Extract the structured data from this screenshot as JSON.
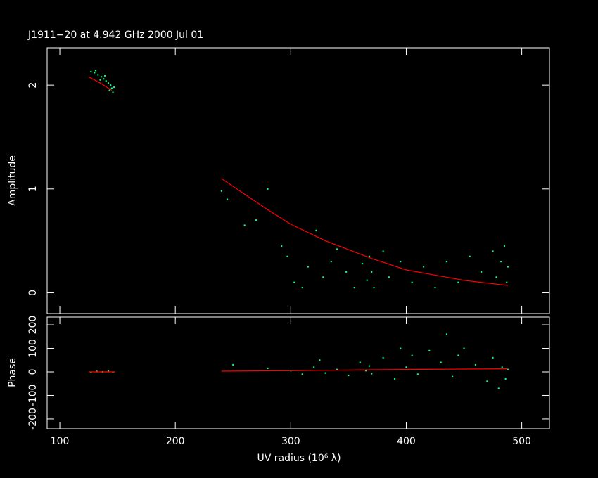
{
  "chart_data": [
    {
      "type": "scatter",
      "title": "J1911−20 at 4.942 GHz 2000 Jul 01",
      "y_label": "Amplitude",
      "xlim": [
        89,
        524
      ],
      "ylim": [
        -0.2,
        2.36
      ],
      "yticks": [
        0,
        1,
        2
      ],
      "series": [
        {
          "color": "#00ff7f",
          "mode": "markers",
          "x": [
            127,
            130,
            133,
            136,
            138,
            140,
            142,
            144,
            145,
            146,
            147,
            143,
            139,
            135,
            131,
            240,
            245,
            260,
            270,
            280,
            292,
            297,
            303,
            310,
            315,
            322,
            328,
            335,
            340,
            348,
            355,
            362,
            366,
            368,
            370,
            372,
            380,
            385,
            395,
            405,
            415,
            425,
            435,
            445,
            455,
            465,
            475,
            478,
            482,
            485,
            487,
            488
          ],
          "values": [
            2.13,
            2.12,
            2.1,
            2.08,
            2.06,
            2.04,
            2.02,
            2.0,
            1.97,
            1.93,
            1.98,
            1.95,
            2.09,
            2.05,
            2.14,
            0.98,
            0.9,
            0.65,
            0.7,
            1.0,
            0.45,
            0.35,
            0.1,
            0.05,
            0.25,
            0.6,
            0.15,
            0.3,
            0.42,
            0.2,
            0.05,
            0.28,
            0.12,
            0.35,
            0.2,
            0.05,
            0.4,
            0.15,
            0.3,
            0.1,
            0.25,
            0.05,
            0.3,
            0.1,
            0.35,
            0.2,
            0.4,
            0.15,
            0.3,
            0.45,
            0.1,
            0.25
          ]
        },
        {
          "color": "#ff0000",
          "mode": "line",
          "x": [
            125,
            135,
            145,
            200,
            240,
            260,
            280,
            300,
            330,
            370,
            400,
            450,
            488
          ],
          "values": [
            2.08,
            2.02,
            1.95,
            null,
            1.1,
            0.95,
            0.8,
            0.66,
            0.5,
            0.33,
            0.22,
            0.12,
            0.07
          ]
        }
      ]
    },
    {
      "type": "scatter",
      "y_label": "Phase",
      "x_label": "UV radius  (10⁶ λ)",
      "xlim": [
        89,
        524
      ],
      "ylim": [
        -242,
        233
      ],
      "xticks": [
        100,
        200,
        300,
        400,
        500
      ],
      "yticks": [
        -200,
        -100,
        0,
        100,
        200
      ],
      "series": [
        {
          "color": "#00ff7f",
          "mode": "markers",
          "x": [
            127,
            132,
            137,
            142,
            146,
            250,
            280,
            300,
            310,
            320,
            330,
            340,
            350,
            360,
            365,
            368,
            370,
            380,
            390,
            400,
            405,
            410,
            420,
            430,
            435,
            440,
            450,
            460,
            470,
            475,
            480,
            483,
            486,
            488,
            445,
            395,
            325
          ],
          "values": [
            -2,
            2,
            0,
            3,
            -1,
            30,
            15,
            5,
            -10,
            20,
            -5,
            10,
            -15,
            40,
            5,
            25,
            -8,
            60,
            -30,
            20,
            70,
            -10,
            90,
            40,
            160,
            -20,
            100,
            30,
            -40,
            60,
            -70,
            20,
            -30,
            10,
            70,
            100,
            50
          ]
        },
        {
          "color": "#ff0000",
          "mode": "line",
          "x": [
            125,
            148,
            200,
            240,
            300,
            350,
            400,
            450,
            488
          ],
          "values": [
            0,
            0,
            null,
            3,
            5,
            8,
            10,
            12,
            13
          ]
        }
      ]
    }
  ]
}
